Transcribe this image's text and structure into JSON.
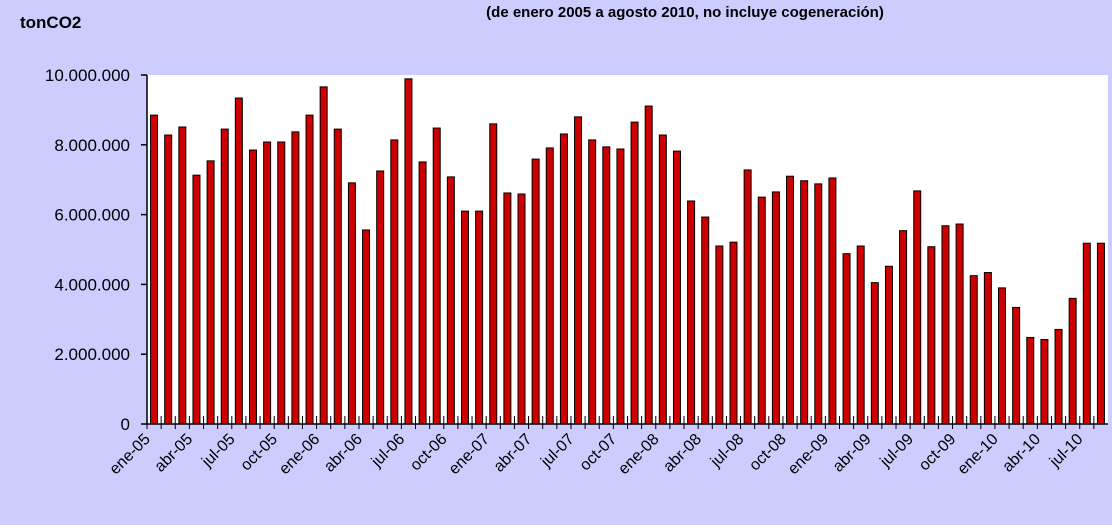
{
  "chart_data": {
    "type": "bar",
    "title": "(de enero 2005 a agosto 2010, no incluye cogeneración)",
    "y_label": "tonCO2",
    "categories": [
      "ene-05",
      null,
      null,
      "abr-05",
      null,
      null,
      "jul-05",
      null,
      null,
      "oct-05",
      null,
      null,
      "ene-06",
      null,
      null,
      "abr-06",
      null,
      null,
      "jul-06",
      null,
      null,
      "oct-06",
      null,
      null,
      "ene-07",
      null,
      null,
      "abr-07",
      null,
      null,
      "jul-07",
      null,
      null,
      "oct-07",
      null,
      null,
      "ene-08",
      null,
      null,
      "abr-08",
      null,
      null,
      "jul-08",
      null,
      null,
      "oct-08",
      null,
      null,
      "ene-09",
      null,
      null,
      "abr-09",
      null,
      null,
      "jul-09",
      null,
      null,
      "oct-09",
      null,
      null,
      "ene-10",
      null,
      null,
      "abr-10",
      null,
      null,
      "jul-10",
      null
    ],
    "values": [
      8850000,
      8280000,
      8510000,
      7130000,
      7540000,
      8450000,
      9340000,
      7850000,
      8080000,
      8080000,
      8370000,
      8850000,
      9660000,
      8450000,
      6910000,
      5560000,
      7250000,
      8140000,
      9890000,
      7510000,
      8480000,
      7080000,
      6100000,
      6100000,
      8600000,
      6620000,
      6590000,
      7590000,
      7910000,
      8310000,
      8800000,
      8140000,
      7940000,
      7880000,
      8650000,
      9110000,
      8280000,
      7820000,
      6390000,
      5930000,
      5100000,
      5210000,
      7280000,
      6500000,
      6650000,
      7100000,
      6970000,
      6880000,
      7050000,
      4880000,
      5100000,
      4050000,
      4520000,
      5540000,
      6680000,
      5080000,
      5680000,
      5730000,
      4250000,
      4340000,
      3900000,
      3340000,
      2480000,
      2420000,
      2710000,
      3600000,
      5180000,
      5180000
    ],
    "color": "#cc0000",
    "ylim": [
      0,
      10000000
    ],
    "yticks": [
      0,
      {
        "value": 2000000,
        "label": "2.000.000"
      },
      {
        "value": 4000000,
        "label": "4.000.000"
      },
      {
        "value": 6000000,
        "label": "6.000.000"
      },
      {
        "value": 8000000,
        "label": "8.000.000"
      },
      {
        "value": 10000000,
        "label": "10.000.000"
      }
    ]
  }
}
